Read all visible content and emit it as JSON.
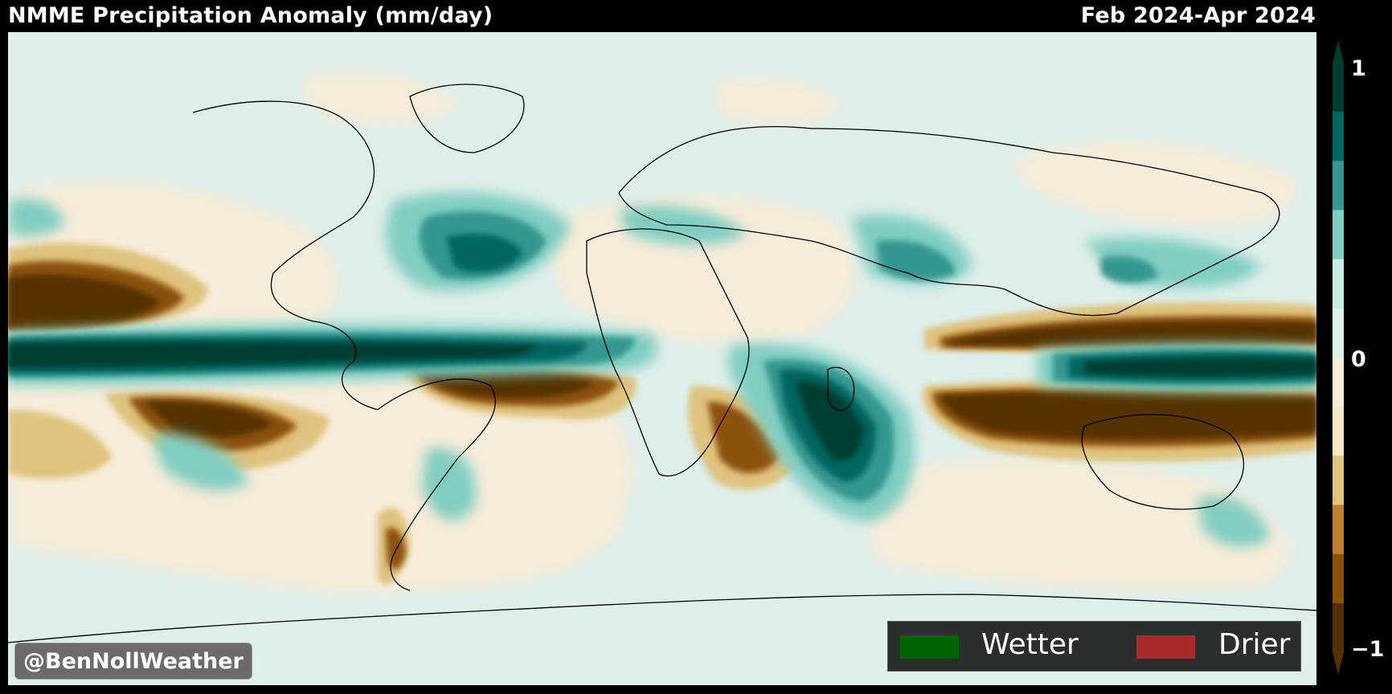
{
  "header": {
    "title": "NMME Precipitation Anomaly (mm/day)",
    "period": "Feb 2024-Apr 2024"
  },
  "colorbar": {
    "ticks": [
      "1",
      "0",
      "−1"
    ],
    "colors": [
      "#003c30",
      "#01665e",
      "#35978f",
      "#80cdc1",
      "#c7eae5",
      "#deeeeb",
      "#f6ecd9",
      "#f6e8c3",
      "#dfc27d",
      "#bf812d",
      "#8c510a",
      "#543005"
    ]
  },
  "legend": {
    "wetter_label": "Wetter",
    "drier_label": "Drier",
    "wetter_color": "#006400",
    "drier_color": "#a52a2a"
  },
  "watermark": "@BenNollWeather"
}
